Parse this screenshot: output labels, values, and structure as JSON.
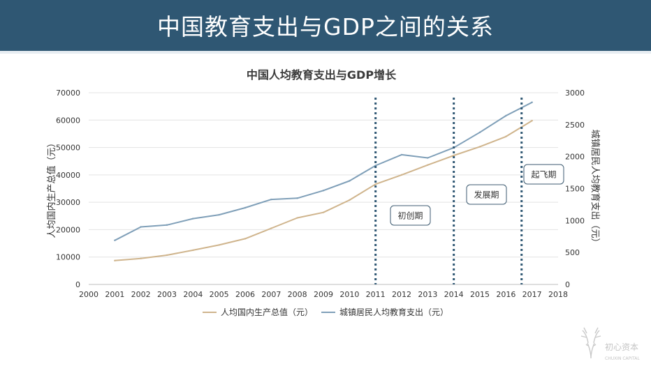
{
  "slide_title": "中国教育支出与GDP之间的关系",
  "chart_data": {
    "type": "line",
    "title": "中国人均教育支出与GDP增长",
    "x": [
      2001,
      2002,
      2003,
      2004,
      2005,
      2006,
      2007,
      2008,
      2009,
      2010,
      2011,
      2012,
      2013,
      2014,
      2015,
      2016,
      2017
    ],
    "xlim": [
      2000,
      2018
    ],
    "x_ticks": [
      "2000",
      "2001",
      "2002",
      "2003",
      "2004",
      "2005",
      "2006",
      "2007",
      "2008",
      "2009",
      "2010",
      "2011",
      "2012",
      "2013",
      "2014",
      "2015",
      "2016",
      "2017",
      "2018"
    ],
    "ylabel_left": "人均国内生产总值（元）",
    "ylabel_right": "城镇居民人均教育支出（元）",
    "ylim_left": [
      0,
      70000
    ],
    "ylim_right": [
      0,
      3000
    ],
    "y_left_ticks": [
      "0",
      "10000",
      "20000",
      "30000",
      "40000",
      "50000",
      "60000",
      "70000"
    ],
    "y_right_ticks": [
      "0",
      "500",
      "1000",
      "1500",
      "2000",
      "2500",
      "3000"
    ],
    "grid": true,
    "legend_position": "bottom",
    "series": [
      {
        "name": "人均国内生产总值（元）",
        "axis": "left",
        "color": "#cfb48c",
        "values": [
          8700,
          9500,
          10700,
          12500,
          14400,
          16700,
          20500,
          24300,
          26300,
          30800,
          36600,
          40000,
          43600,
          47100,
          50300,
          54000,
          59800
        ]
      },
      {
        "name": "城镇居民人均教育支出（元）",
        "axis": "right",
        "color": "#7f9fb8",
        "values": [
          690,
          900,
          930,
          1030,
          1090,
          1200,
          1330,
          1350,
          1470,
          1620,
          1860,
          2030,
          1980,
          2140,
          2380,
          2640,
          2850
        ]
      }
    ],
    "phase_lines": [
      {
        "x": 2011,
        "color": "#2f5773"
      },
      {
        "x": 2014,
        "color": "#2f5773"
      },
      {
        "x": 2016.6,
        "color": "#2f5773"
      }
    ],
    "annotations": [
      {
        "text": "初创期"
      },
      {
        "text": "发展期"
      },
      {
        "text": "起飞期"
      }
    ]
  },
  "watermark": {
    "name_cn": "初心资本",
    "name_en": "CHUXIN CAPITAL",
    "icon": "deer-head-icon"
  }
}
